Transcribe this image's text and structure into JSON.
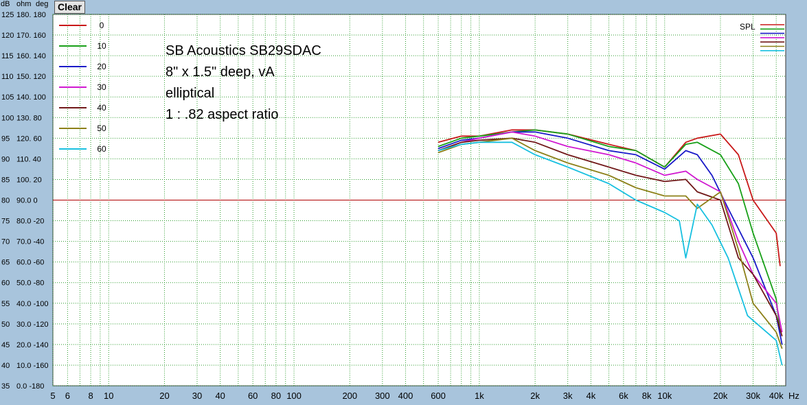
{
  "toolbar": {
    "clear_label": "Clear"
  },
  "axis_header": {
    "db": "dB",
    "ohm": "ohm",
    "deg": "deg"
  },
  "chart_data": {
    "type": "line",
    "xscale": "log",
    "xlim": [
      5,
      45000
    ],
    "ylim": [
      35,
      125
    ],
    "x_unit": "Hz",
    "y_ticks": [
      {
        "db": 125,
        "label": "180. 180"
      },
      {
        "db": 120,
        "label": "170. 160"
      },
      {
        "db": 115,
        "label": "160. 140"
      },
      {
        "db": 110,
        "label": "150. 120"
      },
      {
        "db": 105,
        "label": "140. 100"
      },
      {
        "db": 100,
        "label": "130. 80"
      },
      {
        "db": 95,
        "label": "120. 60"
      },
      {
        "db": 90,
        "label": "110. 40"
      },
      {
        "db": 85,
        "label": "100. 20"
      },
      {
        "db": 80,
        "label": "90.0 0"
      },
      {
        "db": 75,
        "label": "80.0 -20"
      },
      {
        "db": 70,
        "label": "70.0 -40"
      },
      {
        "db": 65,
        "label": "60.0 -60"
      },
      {
        "db": 60,
        "label": "50.0 -80"
      },
      {
        "db": 55,
        "label": "40.0 -100"
      },
      {
        "db": 50,
        "label": "30.0 -120"
      },
      {
        "db": 45,
        "label": "20.0 -140"
      },
      {
        "db": 40,
        "label": "10.0 -160"
      },
      {
        "db": 35,
        "label": "0.0 -180"
      }
    ],
    "x_ticks": [
      {
        "v": 5,
        "label": "5"
      },
      {
        "v": 6,
        "label": "6"
      },
      {
        "v": 8,
        "label": "8"
      },
      {
        "v": 10,
        "label": "10"
      },
      {
        "v": 20,
        "label": "20"
      },
      {
        "v": 30,
        "label": "30"
      },
      {
        "v": 40,
        "label": "40"
      },
      {
        "v": 60,
        "label": "60"
      },
      {
        "v": 80,
        "label": "80"
      },
      {
        "v": 100,
        "label": "100"
      },
      {
        "v": 200,
        "label": "200"
      },
      {
        "v": 300,
        "label": "300"
      },
      {
        "v": 400,
        "label": "400"
      },
      {
        "v": 600,
        "label": "600"
      },
      {
        "v": 1000,
        "label": "1k"
      },
      {
        "v": 2000,
        "label": "2k"
      },
      {
        "v": 3000,
        "label": "3k"
      },
      {
        "v": 4000,
        "label": "4k"
      },
      {
        "v": 6000,
        "label": "6k"
      },
      {
        "v": 8000,
        "label": "8k"
      },
      {
        "v": 10000,
        "label": "10k"
      },
      {
        "v": 20000,
        "label": "20k"
      },
      {
        "v": 30000,
        "label": "30k"
      },
      {
        "v": 40000,
        "label": "40k"
      }
    ],
    "reference_line": 80,
    "spl_label": "SPL",
    "annotations": [
      "SB Acoustics SB29SDAC",
      "8\" x 1.5\" deep, vA",
      "elliptical",
      "1 : .82 aspect ratio"
    ],
    "grid": true,
    "legend_position": "top-left",
    "colors": {
      "background": "#a8c4dc",
      "plot": "#ffffff",
      "grid": "#2a9a2a",
      "reference": "#b00000"
    },
    "series": [
      {
        "name": "0",
        "color": "#c81818",
        "points": [
          [
            600,
            94
          ],
          [
            800,
            95.5
          ],
          [
            1000,
            95.5
          ],
          [
            1500,
            97
          ],
          [
            2000,
            97
          ],
          [
            3000,
            96
          ],
          [
            5000,
            93.5
          ],
          [
            7000,
            92
          ],
          [
            10000,
            88
          ],
          [
            13000,
            94
          ],
          [
            15000,
            95
          ],
          [
            20000,
            96
          ],
          [
            25000,
            91
          ],
          [
            30000,
            80
          ],
          [
            40000,
            72
          ],
          [
            42000,
            64
          ]
        ]
      },
      {
        "name": "10",
        "color": "#18a018",
        "points": [
          [
            600,
            93
          ],
          [
            800,
            95
          ],
          [
            1000,
            95.5
          ],
          [
            1500,
            96.5
          ],
          [
            2000,
            97
          ],
          [
            3000,
            96
          ],
          [
            5000,
            93
          ],
          [
            7000,
            92
          ],
          [
            10000,
            88
          ],
          [
            13000,
            93.5
          ],
          [
            15000,
            94
          ],
          [
            20000,
            91
          ],
          [
            25000,
            84
          ],
          [
            30000,
            72
          ],
          [
            40000,
            56
          ],
          [
            42000,
            48
          ]
        ]
      },
      {
        "name": "20",
        "color": "#1a1ac8",
        "points": [
          [
            600,
            92.5
          ],
          [
            800,
            94.5
          ],
          [
            1000,
            95
          ],
          [
            1500,
            96.5
          ],
          [
            2000,
            96.5
          ],
          [
            3000,
            95
          ],
          [
            5000,
            92
          ],
          [
            7000,
            91
          ],
          [
            10000,
            87.5
          ],
          [
            13000,
            92
          ],
          [
            15000,
            91
          ],
          [
            18000,
            86
          ],
          [
            22000,
            78
          ],
          [
            30000,
            66
          ],
          [
            40000,
            52
          ],
          [
            43000,
            45
          ]
        ]
      },
      {
        "name": "30",
        "color": "#d018d0",
        "points": [
          [
            600,
            92
          ],
          [
            800,
            94
          ],
          [
            1000,
            95
          ],
          [
            1500,
            96.5
          ],
          [
            2000,
            95.5
          ],
          [
            3000,
            93
          ],
          [
            5000,
            91
          ],
          [
            7000,
            89
          ],
          [
            10000,
            86
          ],
          [
            13000,
            87
          ],
          [
            15000,
            85
          ],
          [
            20000,
            82
          ],
          [
            25000,
            70
          ],
          [
            30000,
            62
          ],
          [
            40000,
            55
          ],
          [
            43000,
            48
          ]
        ]
      },
      {
        "name": "40",
        "color": "#701818",
        "points": [
          [
            600,
            92
          ],
          [
            800,
            94
          ],
          [
            1000,
            94.5
          ],
          [
            1500,
            95
          ],
          [
            2000,
            94
          ],
          [
            3000,
            91
          ],
          [
            5000,
            88
          ],
          [
            7000,
            86
          ],
          [
            10000,
            84.5
          ],
          [
            13000,
            85
          ],
          [
            15000,
            82
          ],
          [
            20000,
            80
          ],
          [
            25000,
            66
          ],
          [
            30000,
            62
          ],
          [
            40000,
            52
          ],
          [
            43000,
            47
          ]
        ]
      },
      {
        "name": "50",
        "color": "#8c8018",
        "points": [
          [
            600,
            91.5
          ],
          [
            800,
            93.5
          ],
          [
            1000,
            94
          ],
          [
            1500,
            95
          ],
          [
            2000,
            92
          ],
          [
            3000,
            89
          ],
          [
            5000,
            86
          ],
          [
            7000,
            83
          ],
          [
            10000,
            81
          ],
          [
            13000,
            81
          ],
          [
            15000,
            78
          ],
          [
            20000,
            82
          ],
          [
            25000,
            68
          ],
          [
            30000,
            55
          ],
          [
            40000,
            48
          ],
          [
            43000,
            44
          ]
        ]
      },
      {
        "name": "60",
        "color": "#18c0e0",
        "points": [
          [
            600,
            92
          ],
          [
            800,
            93.5
          ],
          [
            1000,
            94
          ],
          [
            1500,
            94
          ],
          [
            2000,
            91
          ],
          [
            3000,
            88
          ],
          [
            5000,
            84
          ],
          [
            7000,
            80
          ],
          [
            10000,
            77
          ],
          [
            12000,
            75
          ],
          [
            13000,
            66
          ],
          [
            15000,
            79
          ],
          [
            18000,
            74
          ],
          [
            22000,
            66
          ],
          [
            28000,
            52
          ],
          [
            40000,
            46
          ],
          [
            43000,
            40
          ]
        ]
      }
    ]
  }
}
